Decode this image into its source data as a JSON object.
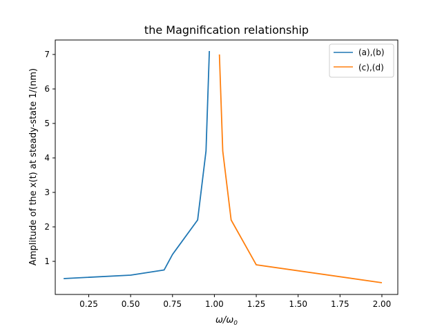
{
  "chart_data": {
    "type": "line",
    "title": "the Magnification relationship",
    "xlabel_main": "ω/ω",
    "xlabel_sub": "0",
    "ylabel": "Amplitude of the x(t) at steady-state 1/(nm)",
    "xlim": [
      0.05,
      2.095
    ],
    "ylim": [
      0.04,
      7.42
    ],
    "x_ticks": [
      0.25,
      0.5,
      0.75,
      1.0,
      1.25,
      1.5,
      1.75,
      2.0
    ],
    "x_tick_labels": [
      "0.25",
      "0.50",
      "0.75",
      "1.00",
      "1.25",
      "1.50",
      "1.75",
      "2.00"
    ],
    "y_ticks": [
      1,
      2,
      3,
      4,
      5,
      6,
      7
    ],
    "y_tick_labels": [
      "1",
      "2",
      "3",
      "4",
      "5",
      "6",
      "7"
    ],
    "grid": false,
    "legend_position": "top-right",
    "series": [
      {
        "name": "(a),(b)",
        "color": "#1f77b4",
        "x": [
          0.1,
          0.5,
          0.7,
          0.75,
          0.9,
          0.95,
          0.97
        ],
        "y": [
          0.5,
          0.6,
          0.75,
          1.2,
          2.2,
          4.2,
          7.1
        ]
      },
      {
        "name": "(c),(d)",
        "color": "#ff7f0e",
        "x": [
          1.03,
          1.05,
          1.1,
          1.25,
          2.0
        ],
        "y": [
          7.0,
          4.2,
          2.2,
          0.9,
          0.38
        ]
      }
    ]
  }
}
